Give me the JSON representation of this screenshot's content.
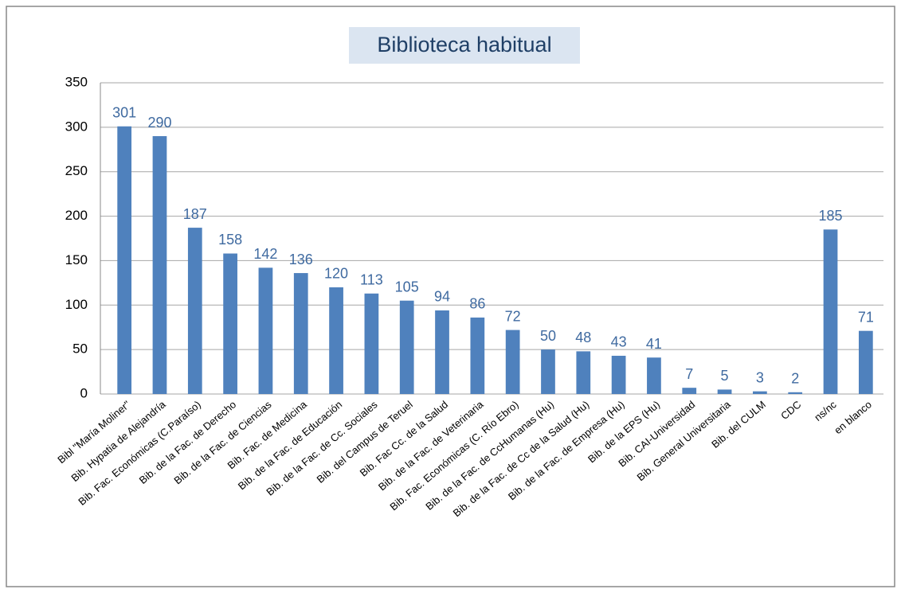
{
  "chart_data": {
    "type": "bar",
    "title": "Biblioteca habitual",
    "categories": [
      "Bibl \"María Moliner\"",
      "Bib. Hypatia de Alejandría",
      "Bib. Fac. Económicas (C.Paraíso)",
      "Bib. de la Fac. de Derecho",
      "Bib. de la Fac. de Ciencias",
      "Bib. Fac. de Medicina",
      "Bib. de la Fac. de Educación",
      "Bib. de la Fac. de Cc. Sociales",
      "Bib. del Campus de Teruel",
      "Bib. Fac Cc. de la Salud",
      "Bib. de la Fac. de Veterinaria",
      "Bib. Fac. Económicas (C. Río Ebro)",
      "Bib. de la Fac. de CcHumanas (Hu)",
      "Bib. de la Fac. de Cc de la Salud (Hu)",
      "Bib. de la Fac. de Empresa (Hu)",
      "Bib. de la EPS (Hu)",
      "Bib. CAI-Universidad",
      "Bib. General Universitaria",
      "Bib. del CULM",
      "CDC",
      "ns/nc",
      "en blanco"
    ],
    "values": [
      301,
      290,
      187,
      158,
      142,
      136,
      120,
      113,
      105,
      94,
      86,
      72,
      50,
      48,
      43,
      41,
      7,
      5,
      3,
      2,
      185,
      71
    ],
    "color": "#4f81bd",
    "ylim": [
      0,
      350
    ],
    "yticks": [
      0,
      50,
      100,
      150,
      200,
      250,
      300,
      350
    ],
    "grid": true
  }
}
